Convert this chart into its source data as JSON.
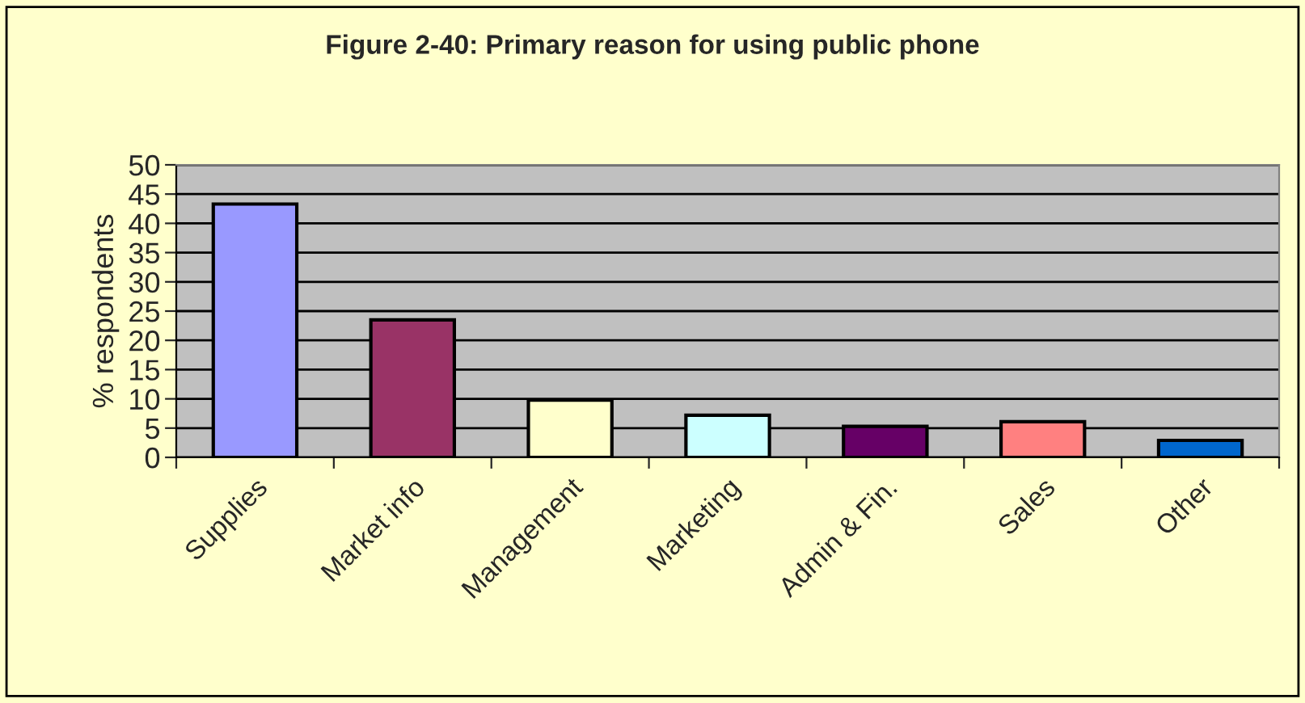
{
  "chart_data": {
    "type": "bar",
    "title": "Figure 2-40: Primary reason for using public phone",
    "ylabel": "% respondents",
    "categories": [
      "Supplies",
      "Market info",
      "Management",
      "Marketing",
      "Admin & Fin.",
      "Sales",
      "Other"
    ],
    "values": [
      43.3,
      23.5,
      9.8,
      7.2,
      5.3,
      6.1,
      2.9
    ],
    "colors": [
      "#9999ff",
      "#993366",
      "#ffffcc",
      "#ccffff",
      "#660066",
      "#ff8080",
      "#0066cc"
    ],
    "ylim": [
      0,
      50
    ],
    "yticks": [
      0,
      5,
      10,
      15,
      20,
      25,
      30,
      35,
      40,
      45,
      50
    ],
    "grid": "y"
  }
}
